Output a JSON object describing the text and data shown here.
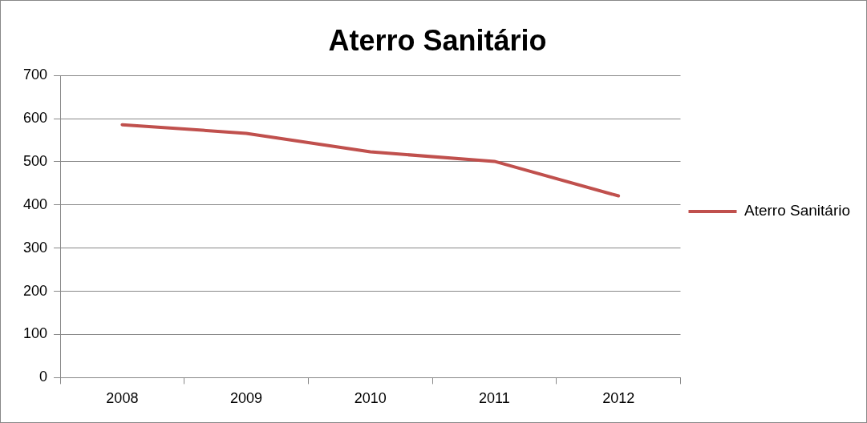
{
  "chart_data": {
    "type": "line",
    "title": "Aterro Sanitário",
    "categories": [
      "2008",
      "2009",
      "2010",
      "2011",
      "2012"
    ],
    "series": [
      {
        "name": "Aterro Sanitário",
        "color": "#c0504d",
        "values": [
          586,
          566,
          523,
          501,
          421
        ]
      }
    ],
    "ylim": [
      0,
      700
    ],
    "yticks": [
      0,
      100,
      200,
      300,
      400,
      500,
      600,
      700
    ],
    "grid": "y",
    "legend": "right",
    "marker": "none",
    "line_style": "solid"
  }
}
